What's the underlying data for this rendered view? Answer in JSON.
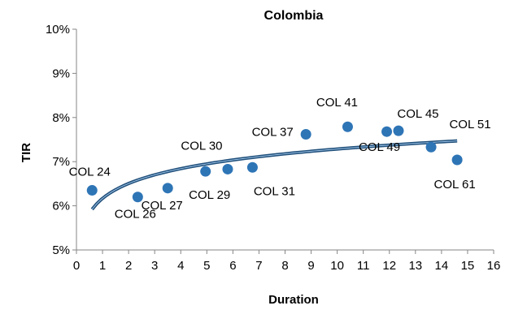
{
  "chart_data": {
    "type": "scatter",
    "title": "Colombia",
    "xlabel": "Duration",
    "ylabel": "TIR",
    "xlim": [
      0,
      16
    ],
    "ylim": [
      5,
      10
    ],
    "x_ticks": [
      "0",
      "1",
      "2",
      "3",
      "4",
      "5",
      "6",
      "7",
      "8",
      "9",
      "10",
      "11",
      "12",
      "13",
      "14",
      "15",
      "16"
    ],
    "y_ticks": [
      "5%",
      "6%",
      "7%",
      "8%",
      "9%",
      "10%"
    ],
    "grid": false,
    "legend": "none",
    "marker_color": "#2e75b6",
    "trend_color": "#1f4e79",
    "points": [
      {
        "label": "COL 24",
        "x": 0.6,
        "y": 6.35
      },
      {
        "label": "COL 26",
        "x": 2.35,
        "y": 6.2
      },
      {
        "label": "COL 27",
        "x": 3.5,
        "y": 6.4
      },
      {
        "label": "COL 29",
        "x": 4.95,
        "y": 6.78
      },
      {
        "label": "COL 30",
        "x": 5.8,
        "y": 6.83
      },
      {
        "label": "COL 31",
        "x": 6.75,
        "y": 6.87
      },
      {
        "label": "COL 37",
        "x": 8.8,
        "y": 7.62
      },
      {
        "label": "COL 41",
        "x": 10.4,
        "y": 7.79
      },
      {
        "label": "COL 49",
        "x": 11.9,
        "y": 7.68
      },
      {
        "label": "COL 45",
        "x": 12.35,
        "y": 7.7
      },
      {
        "label": "COL 51",
        "x": 13.6,
        "y": 7.33
      },
      {
        "label": "COL 61",
        "x": 14.6,
        "y": 7.04
      }
    ],
    "trendline": {
      "type": "logarithmic",
      "x_from": 0.6,
      "x_to": 14.6,
      "y_from": 5.92,
      "y_to": 7.47
    }
  }
}
